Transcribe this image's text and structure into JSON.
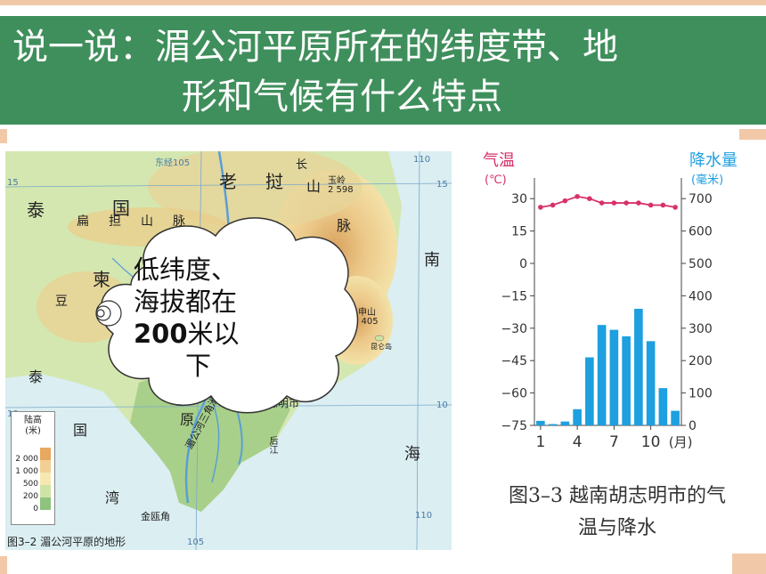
{
  "title": {
    "line1": "说一说：湄公河平原所在的纬度带、地",
    "line2": "形和气候有什么特点"
  },
  "map": {
    "caption": "图3–2 湄公河平原的地形",
    "labels": {
      "laos": "老　挝",
      "thailand_a": "泰",
      "thailand_b": "国",
      "range_a": "扁　担　山　脉",
      "cambodia": "柬",
      "dou": "豆",
      "tai_left": "泰",
      "guo_left": "国",
      "wan": "湾",
      "nan": "南",
      "hai": "海",
      "yuan": "原",
      "hcmc": "胡志明市",
      "jinou": "金瓯角",
      "mekong": "湄公河三角洲",
      "yuling": "玉岭",
      "yuling_h": "2 598",
      "shan": "山",
      "mai": "脉",
      "chang": "长",
      "shenshan": "多申山",
      "shenshan_h": "2 405",
      "kunlun": "昆仑岛",
      "lon_105_top": "东经105",
      "lon_110_top": "110",
      "lon_105_bot": "105",
      "lon_110_bot": "110",
      "lat_15": "15",
      "lat_15r": "15",
      "lat_10": "10",
      "lat_10r": "10",
      "hau": "后江"
    },
    "legend": {
      "title_1": "陆高",
      "title_2": "(米)",
      "ticks": [
        "2 000",
        "1 000",
        "500",
        "200",
        "0"
      ],
      "colors": [
        "#e8a860",
        "#f3cf94",
        "#f6e8b0",
        "#cfe3a6",
        "#8ec37e"
      ]
    }
  },
  "callout": {
    "line1": "低纬度、",
    "line2": "海拔都在",
    "line3_num": "200",
    "line3_rest": "米以",
    "line4": "下"
  },
  "chart_data": {
    "type": "bar+line",
    "temp_label": [
      "气温",
      "(℃)"
    ],
    "precip_label": [
      "降水量",
      "(毫米)"
    ],
    "categories": [
      "1",
      "2",
      "3",
      "4",
      "5",
      "6",
      "7",
      "8",
      "9",
      "10",
      "11",
      "12"
    ],
    "x_tick_labels": [
      "1",
      "4",
      "7",
      "10",
      "(月)"
    ],
    "x_tick_months": [
      1,
      4,
      7,
      10
    ],
    "temp_ticks": [
      "30",
      "15",
      "0",
      "−15",
      "−30",
      "−45",
      "−60",
      "−75"
    ],
    "temp_tick_values": [
      30,
      15,
      0,
      -15,
      -30,
      -45,
      -60,
      -75
    ],
    "precip_ticks": [
      "700",
      "600",
      "500",
      "400",
      "300",
      "200",
      "100",
      "0"
    ],
    "precip_tick_values": [
      700,
      600,
      500,
      400,
      300,
      200,
      100,
      0
    ],
    "temp_range": [
      -75,
      37.5
    ],
    "precip_range": [
      0,
      750
    ],
    "temperature": [
      26,
      27,
      29,
      31,
      30,
      28,
      28,
      28,
      28,
      27,
      27,
      26
    ],
    "precipitation": [
      14,
      4,
      12,
      50,
      210,
      310,
      295,
      275,
      360,
      260,
      115,
      45
    ],
    "bar_color": "#1e9fe0",
    "line_color": "#d8306a",
    "caption_line1": "图3–3 越南胡志明市的气",
    "caption_line2": "温与降水"
  }
}
